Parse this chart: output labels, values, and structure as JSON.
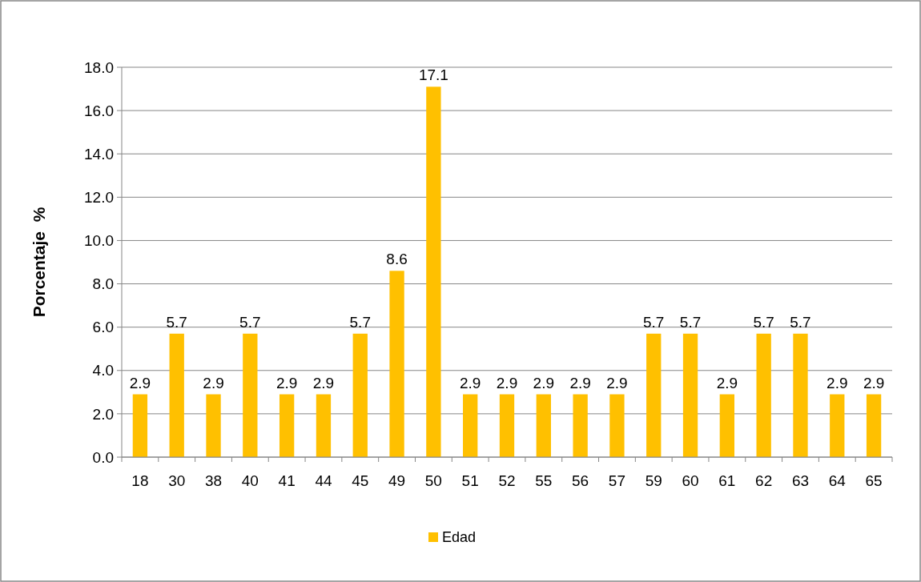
{
  "chart_data": {
    "type": "bar",
    "ylabel": "Porcentaje  %",
    "categories": [
      "18",
      "30",
      "38",
      "40",
      "41",
      "44",
      "45",
      "49",
      "50",
      "51",
      "52",
      "55",
      "56",
      "57",
      "59",
      "60",
      "61",
      "62",
      "63",
      "64",
      "65"
    ],
    "series": [
      {
        "name": "Edad",
        "color": "#ffc000",
        "values": [
          2.9,
          5.7,
          2.9,
          5.7,
          2.9,
          2.9,
          5.7,
          8.6,
          17.1,
          2.9,
          2.9,
          2.9,
          2.9,
          2.9,
          5.7,
          5.7,
          2.9,
          5.7,
          5.7,
          2.9,
          2.9
        ]
      }
    ],
    "ylim": [
      0,
      18
    ],
    "yticks": [
      {
        "value": 0,
        "label": "0.0"
      },
      {
        "value": 2,
        "label": "2.0"
      },
      {
        "value": 4,
        "label": "4.0"
      },
      {
        "value": 6,
        "label": "6.0"
      },
      {
        "value": 8,
        "label": "8.0"
      },
      {
        "value": 10,
        "label": "10.0"
      },
      {
        "value": 12,
        "label": "12.0"
      },
      {
        "value": 14,
        "label": "14.0"
      },
      {
        "value": 16,
        "label": "16.0"
      },
      {
        "value": 18,
        "label": "18.0"
      }
    ],
    "grid": "y",
    "legend": "bottom",
    "data_labels": true
  }
}
